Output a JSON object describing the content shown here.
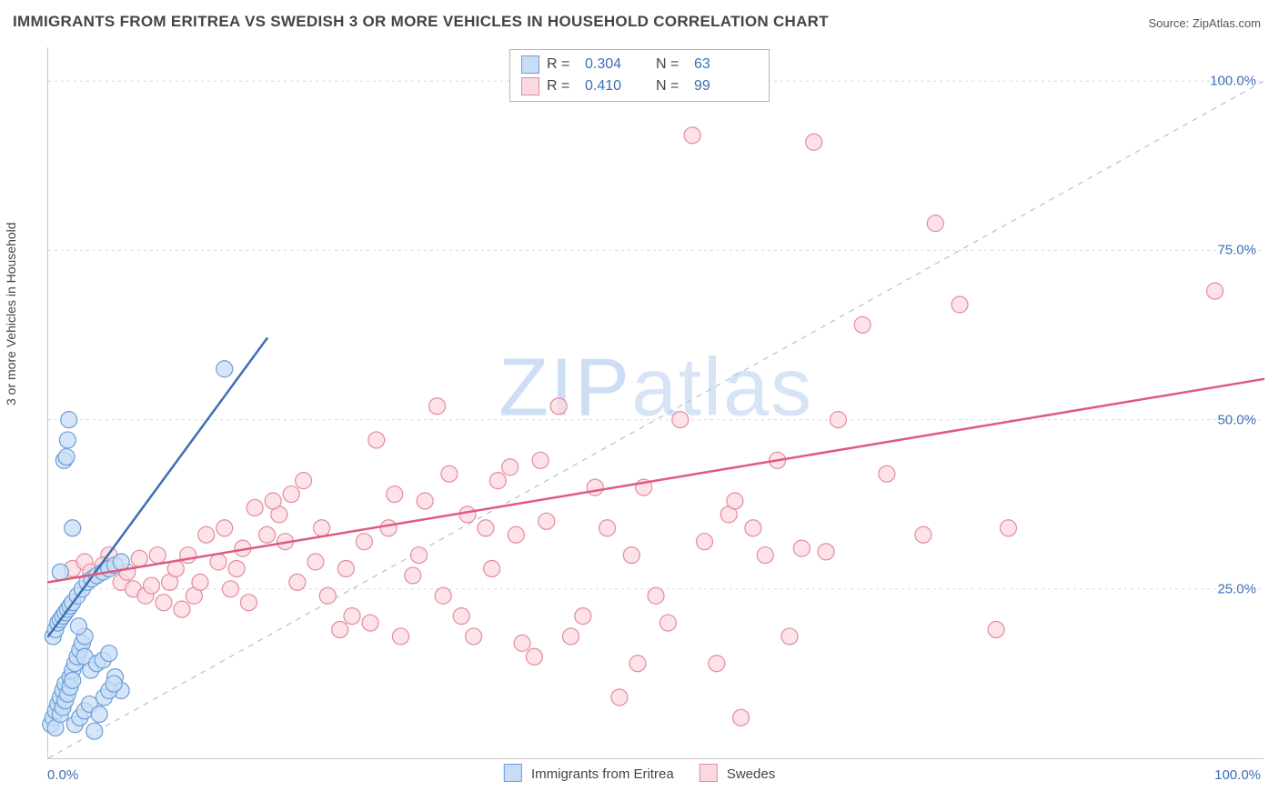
{
  "title": "IMMIGRANTS FROM ERITREA VS SWEDISH 3 OR MORE VEHICLES IN HOUSEHOLD CORRELATION CHART",
  "source": "Source: ZipAtlas.com",
  "watermark_a": "ZIP",
  "watermark_b": "atlas",
  "chart": {
    "type": "scatter",
    "xlim": [
      0,
      100
    ],
    "ylim": [
      0,
      105
    ],
    "xlabel": "",
    "ylabel": "3 or more Vehicles in Household",
    "xtick_labels": {
      "0": "0.0%",
      "100": "100.0%"
    },
    "ytick_labels": {
      "25": "25.0%",
      "50": "50.0%",
      "75": "75.0%",
      "100": "100.0%"
    },
    "grid_color": "#d9d9d9",
    "axis_color": "#c8c8c8",
    "tick_text_color": "#3b6fb6",
    "background_color": "#ffffff",
    "diagonal_guide_color": "#a8c4e6",
    "marker_radius": 9,
    "marker_stroke_width": 1.2,
    "trend_line_width": 2.5,
    "series": [
      {
        "id": "eritrea",
        "label": "Immigrants from Eritrea",
        "fill": "#c8ddf5",
        "stroke": "#6b9dd8",
        "trend_color": "#3b6fb6",
        "R": "0.304",
        "N": "63",
        "trend": {
          "x1": 0,
          "y1": 18,
          "x2": 18,
          "y2": 62
        },
        "points": [
          [
            0.2,
            5
          ],
          [
            0.4,
            6
          ],
          [
            0.6,
            7
          ],
          [
            0.8,
            8
          ],
          [
            1.0,
            9
          ],
          [
            1.2,
            10
          ],
          [
            1.4,
            11
          ],
          [
            1.8,
            12
          ],
          [
            2.0,
            13
          ],
          [
            2.2,
            14
          ],
          [
            2.4,
            15
          ],
          [
            2.6,
            16
          ],
          [
            2.8,
            17
          ],
          [
            3.0,
            18
          ],
          [
            0.6,
            4.5
          ],
          [
            1.0,
            6.5
          ],
          [
            1.2,
            7.5
          ],
          [
            1.4,
            8.5
          ],
          [
            1.6,
            9.5
          ],
          [
            1.8,
            10.5
          ],
          [
            2.0,
            11.5
          ],
          [
            0.4,
            18
          ],
          [
            0.6,
            19
          ],
          [
            0.8,
            20
          ],
          [
            1.0,
            20.5
          ],
          [
            1.2,
            21
          ],
          [
            1.4,
            21.5
          ],
          [
            1.6,
            22
          ],
          [
            1.8,
            22.5
          ],
          [
            2.0,
            23
          ],
          [
            2.4,
            24
          ],
          [
            2.8,
            25
          ],
          [
            3.2,
            26
          ],
          [
            3.6,
            26.5
          ],
          [
            4.0,
            27
          ],
          [
            4.5,
            27.5
          ],
          [
            5.0,
            28
          ],
          [
            5.5,
            28.5
          ],
          [
            6.0,
            29
          ],
          [
            1.0,
            27.5
          ],
          [
            1.3,
            44
          ],
          [
            1.5,
            44.5
          ],
          [
            1.6,
            47
          ],
          [
            1.7,
            50
          ],
          [
            2.0,
            34
          ],
          [
            2.5,
            19.5
          ],
          [
            3.0,
            15
          ],
          [
            3.5,
            13
          ],
          [
            4.0,
            14
          ],
          [
            4.5,
            14.5
          ],
          [
            5.0,
            15.5
          ],
          [
            5.5,
            12
          ],
          [
            6.0,
            10
          ],
          [
            2.2,
            5
          ],
          [
            2.6,
            6
          ],
          [
            3.0,
            7
          ],
          [
            3.4,
            8
          ],
          [
            3.8,
            4
          ],
          [
            4.2,
            6.5
          ],
          [
            4.6,
            9
          ],
          [
            5.0,
            10
          ],
          [
            5.4,
            11
          ],
          [
            14.5,
            57.5
          ]
        ]
      },
      {
        "id": "swedes",
        "label": "Swedes",
        "fill": "#fcd8e0",
        "stroke": "#e28ba0",
        "trend_color": "#e05a7e",
        "R": "0.410",
        "N": "99",
        "trend": {
          "x1": 0,
          "y1": 26,
          "x2": 100,
          "y2": 56
        },
        "points": [
          [
            2,
            28
          ],
          [
            3,
            29
          ],
          [
            4,
            27
          ],
          [
            5,
            30
          ],
          [
            6,
            26
          ],
          [
            7,
            25
          ],
          [
            8,
            24
          ],
          [
            9,
            30
          ],
          [
            10,
            26
          ],
          [
            11,
            22
          ],
          [
            12,
            24
          ],
          [
            13,
            33
          ],
          [
            14,
            29
          ],
          [
            15,
            25
          ],
          [
            16,
            31
          ],
          [
            17,
            37
          ],
          [
            18,
            33
          ],
          [
            19,
            36
          ],
          [
            20,
            39
          ],
          [
            21,
            41
          ],
          [
            22,
            29
          ],
          [
            23,
            24
          ],
          [
            24,
            19
          ],
          [
            25,
            21
          ],
          [
            26,
            32
          ],
          [
            27,
            47
          ],
          [
            28,
            34
          ],
          [
            29,
            18
          ],
          [
            30,
            27
          ],
          [
            31,
            38
          ],
          [
            32,
            52
          ],
          [
            33,
            42
          ],
          [
            34,
            21
          ],
          [
            35,
            18
          ],
          [
            36,
            34
          ],
          [
            37,
            41
          ],
          [
            38,
            43
          ],
          [
            39,
            17
          ],
          [
            40,
            15
          ],
          [
            41,
            35
          ],
          [
            42,
            52
          ],
          [
            43,
            18
          ],
          [
            44,
            21
          ],
          [
            45,
            40
          ],
          [
            46,
            34
          ],
          [
            47,
            9
          ],
          [
            48,
            30
          ],
          [
            49,
            40
          ],
          [
            50,
            24
          ],
          [
            51,
            20
          ],
          [
            52,
            50
          ],
          [
            53,
            92
          ],
          [
            54,
            32
          ],
          [
            55,
            14
          ],
          [
            56,
            36
          ],
          [
            57,
            6
          ],
          [
            58,
            34
          ],
          [
            59,
            30
          ],
          [
            60,
            44
          ],
          [
            61,
            18
          ],
          [
            62,
            31
          ],
          [
            63,
            91
          ],
          [
            64,
            30.5
          ],
          [
            65,
            50
          ],
          [
            67,
            64
          ],
          [
            69,
            42
          ],
          [
            72,
            33
          ],
          [
            73,
            79
          ],
          [
            75,
            67
          ],
          [
            78,
            19
          ],
          [
            79,
            34
          ],
          [
            96,
            69
          ],
          [
            3.5,
            27.5
          ],
          [
            4.5,
            28.5
          ],
          [
            6.5,
            27.5
          ],
          [
            7.5,
            29.5
          ],
          [
            8.5,
            25.5
          ],
          [
            9.5,
            23
          ],
          [
            10.5,
            28
          ],
          [
            11.5,
            30
          ],
          [
            12.5,
            26
          ],
          [
            14.5,
            34
          ],
          [
            15.5,
            28
          ],
          [
            16.5,
            23
          ],
          [
            18.5,
            38
          ],
          [
            19.5,
            32
          ],
          [
            20.5,
            26
          ],
          [
            22.5,
            34
          ],
          [
            24.5,
            28
          ],
          [
            26.5,
            20
          ],
          [
            28.5,
            39
          ],
          [
            30.5,
            30
          ],
          [
            32.5,
            24
          ],
          [
            34.5,
            36
          ],
          [
            36.5,
            28
          ],
          [
            38.5,
            33
          ],
          [
            40.5,
            44
          ],
          [
            56.5,
            38
          ],
          [
            48.5,
            14
          ]
        ]
      }
    ]
  },
  "legend_stats": {
    "R_label": "R =",
    "N_label": "N ="
  }
}
